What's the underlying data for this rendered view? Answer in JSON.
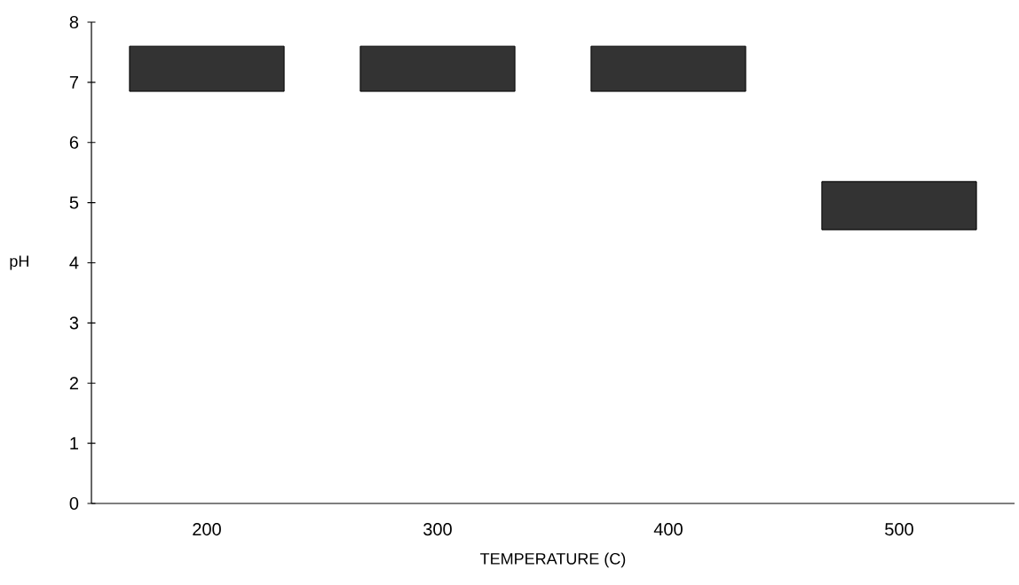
{
  "chart_data": {
    "type": "bar",
    "xlabel": "TEMPERATURE (C)",
    "ylabel": "pH",
    "categories": [
      "200",
      "300",
      "400",
      "500"
    ],
    "base": [
      6.85,
      6.85,
      6.85,
      4.55
    ],
    "values": [
      0.75,
      0.75,
      0.75,
      0.8
    ],
    "color": "#333333",
    "ylim": [
      0,
      8
    ],
    "yticks": [
      0,
      1,
      2,
      3,
      4,
      5,
      6,
      7,
      8
    ]
  }
}
